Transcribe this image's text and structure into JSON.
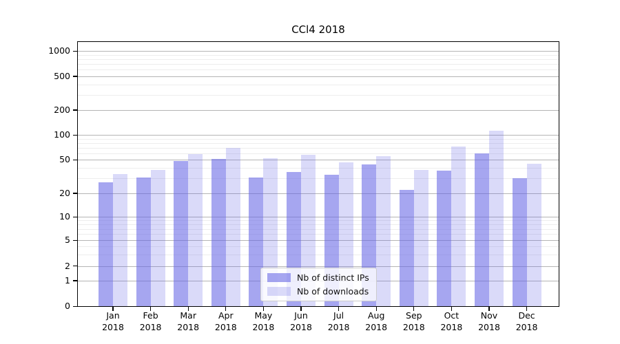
{
  "chart_data": {
    "type": "bar",
    "title": "CCl4 2018",
    "x_month_labels": [
      "Jan",
      "Feb",
      "Mar",
      "Apr",
      "May",
      "Jun",
      "Jul",
      "Aug",
      "Sep",
      "Oct",
      "Nov",
      "Dec"
    ],
    "x_year_label": "2018",
    "series": [
      {
        "name": "Nb of distinct IPs",
        "color_rgba": "rgba(102,102,230,0.58)",
        "values": [
          27,
          31,
          48,
          51,
          31,
          36,
          33,
          44,
          22,
          37,
          60,
          30
        ]
      },
      {
        "name": "Nb of downloads",
        "color_rgba": "rgba(102,102,230,0.24)",
        "values": [
          34,
          38,
          59,
          70,
          52,
          57,
          47,
          55,
          38,
          72,
          112,
          45
        ]
      }
    ],
    "y_axis": {
      "scale": "symlog",
      "ticks": [
        0,
        1,
        2,
        5,
        10,
        20,
        50,
        100,
        200,
        500,
        1000
      ],
      "minor_ticks": [
        3,
        4,
        6,
        7,
        8,
        9,
        30,
        40,
        60,
        70,
        80,
        90,
        300,
        400,
        600,
        700,
        800,
        900
      ],
      "ylim": [
        0,
        1280
      ]
    },
    "grid": {
      "major_color": "#b4b4b4",
      "minor_color": "#ededed",
      "enabled": true
    },
    "legend": {
      "position": "lower-center"
    }
  }
}
